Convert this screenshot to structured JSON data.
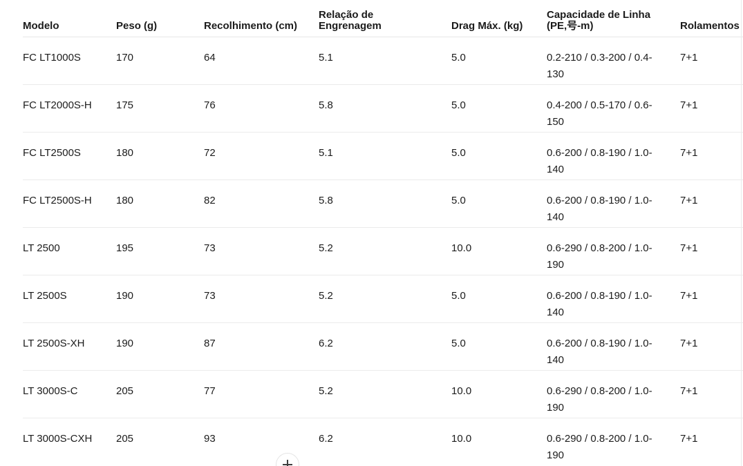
{
  "table": {
    "columns": [
      "Modelo",
      "Peso (g)",
      "Recolhimento (cm)",
      "Relação de\nEngrenagem",
      "Drag Máx. (kg)",
      "Capacidade de Linha\n(PE,号-m)",
      "Rolamentos"
    ],
    "rows": [
      [
        "FC LT1000S",
        "170",
        "64",
        "5.1",
        "5.0",
        "0.2-210 / 0.3-200 / 0.4-130",
        "7+1"
      ],
      [
        "FC LT2000S-H",
        "175",
        "76",
        "5.8",
        "5.0",
        "0.4-200 / 0.5-170 / 0.6-150",
        "7+1"
      ],
      [
        "FC LT2500S",
        "180",
        "72",
        "5.1",
        "5.0",
        "0.6-200 / 0.8-190 / 1.0-140",
        "7+1"
      ],
      [
        "FC LT2500S-H",
        "180",
        "82",
        "5.8",
        "5.0",
        "0.6-200 / 0.8-190 / 1.0-140",
        "7+1"
      ],
      [
        "LT 2500",
        "195",
        "73",
        "5.2",
        "10.0",
        "0.6-290 / 0.8-200 / 1.0-190",
        "7+1"
      ],
      [
        "LT 2500S",
        "190",
        "73",
        "5.2",
        "5.0",
        "0.6-200 / 0.8-190 / 1.0-140",
        "7+1"
      ],
      [
        "LT 2500S-XH",
        "190",
        "87",
        "6.2",
        "5.0",
        "0.6-200 / 0.8-190 / 1.0-140",
        "7+1"
      ],
      [
        "LT 3000S-C",
        "205",
        "77",
        "5.2",
        "10.0",
        "0.6-290 / 0.8-200 / 1.0-190",
        "7+1"
      ],
      [
        "LT 3000S-CXH",
        "205",
        "93",
        "6.2",
        "10.0",
        "0.6-290 / 0.8-200 / 1.0-190",
        "7+1"
      ]
    ]
  },
  "colors": {
    "text": "#1b1b1b",
    "divider": "#ebebeb",
    "header_divider": "#e6e6e6",
    "button_border": "#e4e4e4"
  },
  "expand_button": {
    "icon": "plus-icon"
  }
}
